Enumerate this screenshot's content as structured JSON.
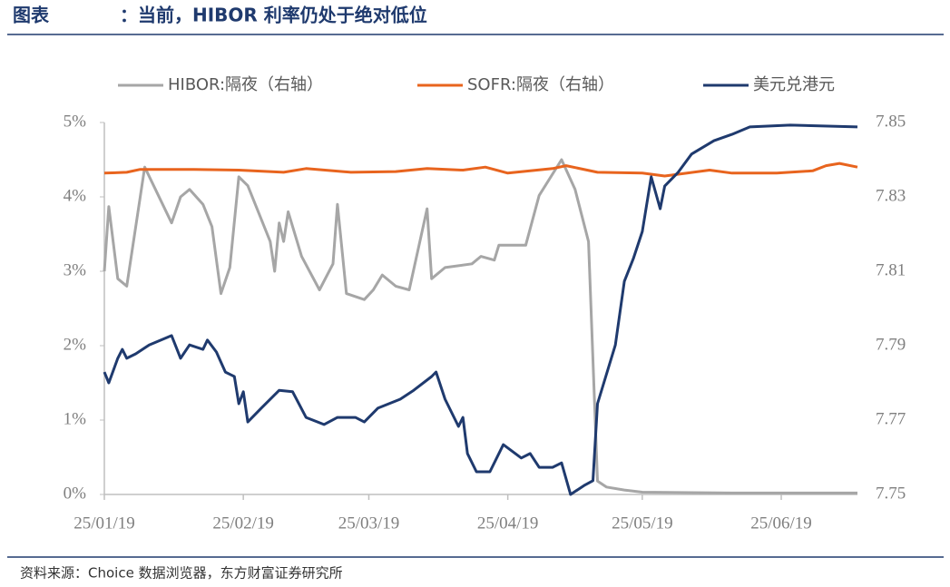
{
  "header": {
    "label": "图表",
    "title": "：当前，HIBOR 利率仍处于绝对低位"
  },
  "chart_data": {
    "type": "line",
    "xlim": [
      "25/01/19",
      "25/07/06"
    ],
    "xticks": [
      "25/01/19",
      "25/02/19",
      "25/03/19",
      "25/04/19",
      "25/05/19",
      "25/06/19"
    ],
    "ylim": [
      0,
      5
    ],
    "yticks": [
      {
        "value": 0,
        "label": "0%"
      },
      {
        "value": 1,
        "label": "1%"
      },
      {
        "value": 2,
        "label": "2%"
      },
      {
        "value": 3,
        "label": "3%"
      },
      {
        "value": 4,
        "label": "4%"
      },
      {
        "value": 5,
        "label": "5%"
      }
    ],
    "y2lim": [
      7.75,
      7.85
    ],
    "y2ticks": [
      7.75,
      7.77,
      7.79,
      7.81,
      7.83,
      7.85
    ],
    "legend": "top",
    "series": [
      {
        "name": "HIBOR:隔夜（右轴）",
        "color": "#a6a6a6",
        "axis": "y",
        "x": [
          "25/01/19",
          "25/01/20",
          "25/01/22",
          "25/01/24",
          "25/01/28",
          "25/02/03",
          "25/02/05",
          "25/02/07",
          "25/02/10",
          "25/02/12",
          "25/02/14",
          "25/02/16",
          "25/02/18",
          "25/02/20",
          "25/02/25",
          "25/02/26",
          "25/02/27",
          "25/02/28",
          "25/03/01",
          "25/03/04",
          "25/03/08",
          "25/03/11",
          "25/03/12",
          "25/03/14",
          "25/03/18",
          "25/03/20",
          "25/03/22",
          "25/03/25",
          "25/03/28",
          "25/04/01",
          "25/04/02",
          "25/04/05",
          "25/04/11",
          "25/04/13",
          "25/04/16",
          "25/04/17",
          "25/04/23",
          "25/04/26",
          "25/05/01",
          "25/05/04",
          "25/05/07",
          "25/05/09",
          "25/05/11",
          "25/05/15",
          "25/05/19",
          "25/06/08",
          "25/07/06"
        ],
        "values": [
          3.0,
          3.87,
          2.9,
          2.8,
          4.4,
          3.65,
          4.0,
          4.1,
          3.9,
          3.6,
          2.7,
          3.05,
          4.27,
          4.15,
          3.4,
          3.0,
          3.65,
          3.4,
          3.8,
          3.2,
          2.75,
          3.1,
          3.9,
          2.7,
          2.62,
          2.75,
          2.95,
          2.8,
          2.75,
          3.84,
          2.9,
          3.05,
          3.1,
          3.2,
          3.15,
          3.35,
          3.35,
          4.02,
          4.5,
          4.1,
          3.4,
          0.18,
          0.1,
          0.06,
          0.03,
          0.02,
          0.02
        ]
      },
      {
        "name": "SOFR:隔夜（右轴）",
        "color": "#e8641e",
        "axis": "y",
        "x": [
          "25/01/19",
          "25/01/24",
          "25/01/27",
          "25/02/08",
          "25/02/18",
          "25/02/28",
          "25/03/05",
          "25/03/15",
          "25/03/25",
          "25/04/01",
          "25/04/09",
          "25/04/14",
          "25/04/19",
          "25/04/29",
          "25/05/02",
          "25/05/09",
          "25/05/19",
          "25/05/24",
          "25/05/29",
          "25/06/03",
          "25/06/08",
          "25/06/18",
          "25/06/26",
          "25/06/29",
          "25/07/02",
          "25/07/06"
        ],
        "values": [
          4.32,
          4.33,
          4.37,
          4.37,
          4.36,
          4.33,
          4.38,
          4.33,
          4.34,
          4.38,
          4.36,
          4.4,
          4.32,
          4.38,
          4.42,
          4.33,
          4.32,
          4.28,
          4.32,
          4.36,
          4.32,
          4.32,
          4.35,
          4.42,
          4.45,
          4.4
        ]
      },
      {
        "name": "美元兑港元",
        "color": "#1f3a6e",
        "axis": "y2",
        "x": [
          "25/01/19",
          "25/01/20",
          "25/01/22",
          "25/01/23",
          "25/01/24",
          "25/01/26",
          "25/01/29",
          "25/02/03",
          "25/02/05",
          "25/02/07",
          "25/02/10",
          "25/02/11",
          "25/02/13",
          "25/02/15",
          "25/02/17",
          "25/02/18",
          "25/02/19",
          "25/02/20",
          "25/02/23",
          "25/02/27",
          "25/03/02",
          "25/03/05",
          "25/03/09",
          "25/03/12",
          "25/03/16",
          "25/03/18",
          "25/03/21",
          "25/03/26",
          "25/03/29",
          "25/04/02",
          "25/04/03",
          "25/04/05",
          "25/04/08",
          "25/04/09",
          "25/04/10",
          "25/04/12",
          "25/04/15",
          "25/04/18",
          "25/04/22",
          "25/04/24",
          "25/04/26",
          "25/04/29",
          "25/05/01",
          "25/05/03",
          "25/05/06",
          "25/05/08",
          "25/05/09",
          "25/05/13",
          "25/05/15",
          "25/05/17",
          "25/05/19",
          "25/05/21",
          "25/05/23",
          "25/05/24",
          "25/05/27",
          "25/05/30",
          "25/06/04",
          "25/06/08",
          "25/06/12",
          "25/06/21",
          "25/07/06"
        ],
        "values": [
          7.7829,
          7.78,
          7.7866,
          7.789,
          7.7866,
          7.7878,
          7.7902,
          7.7927,
          7.7866,
          7.7902,
          7.789,
          7.7915,
          7.7883,
          7.7829,
          7.7817,
          7.7744,
          7.7776,
          7.7695,
          7.7732,
          7.778,
          7.7776,
          7.7707,
          7.7688,
          7.7707,
          7.7707,
          7.7695,
          7.7732,
          7.7756,
          7.778,
          7.7817,
          7.7829,
          7.7756,
          7.7683,
          7.7707,
          7.761,
          7.7561,
          7.7561,
          7.7634,
          7.7598,
          7.761,
          7.7573,
          7.7573,
          7.7585,
          7.75,
          7.7524,
          7.7537,
          7.7744,
          7.7902,
          7.8073,
          7.8134,
          7.8207,
          7.8354,
          7.8268,
          7.8329,
          7.8366,
          7.8415,
          7.8451,
          7.8468,
          7.8488,
          7.8493,
          7.8488
        ]
      }
    ]
  },
  "footer": {
    "source": "资料来源：Choice 数据浏览器，东方财富证券研究所"
  }
}
